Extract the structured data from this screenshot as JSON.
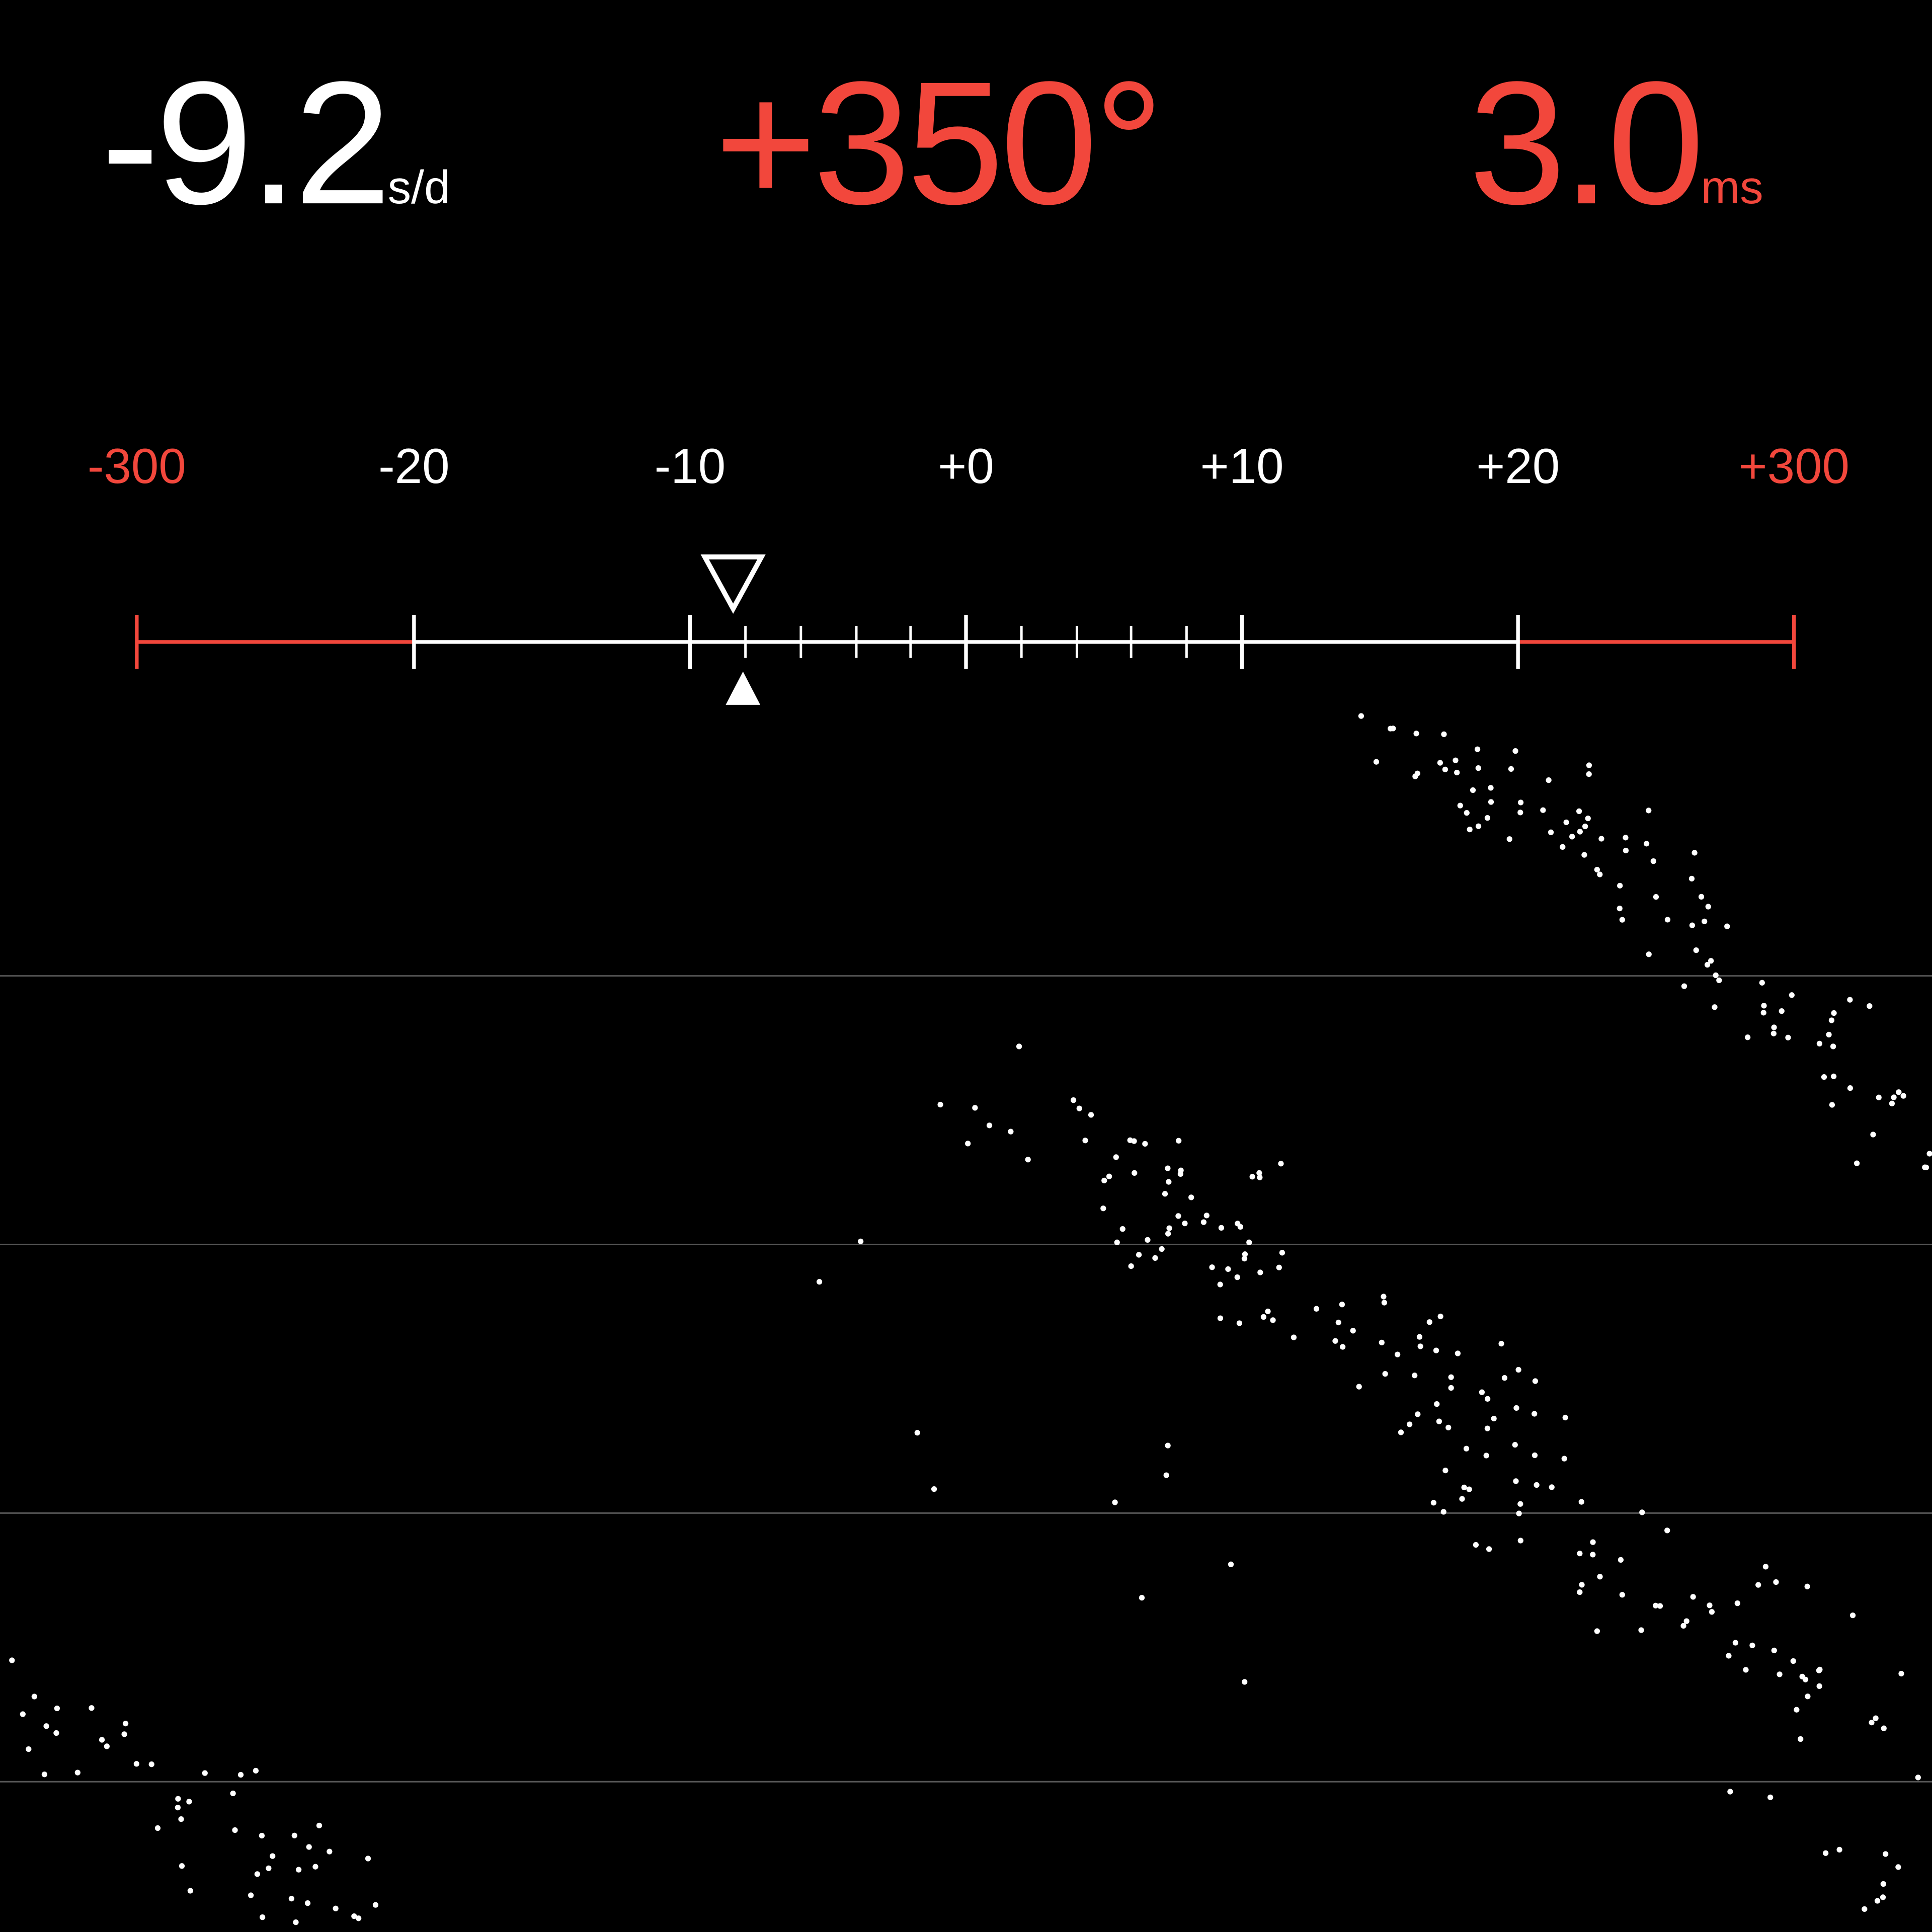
{
  "readouts": {
    "rate": {
      "value": "-9.2",
      "unit": "s/d",
      "color": "#ffffff"
    },
    "amplitude": {
      "value": "+350°",
      "color": "#f2473c"
    },
    "beat_error": {
      "value": "3.0",
      "unit": "ms",
      "color": "#f2473c"
    }
  },
  "scale": {
    "labels": [
      {
        "text": "-300",
        "color": "#f2473c"
      },
      {
        "text": "-20",
        "color": "#ffffff"
      },
      {
        "text": "-10",
        "color": "#ffffff"
      },
      {
        "text": "+0",
        "color": "#ffffff"
      },
      {
        "text": "+10",
        "color": "#ffffff"
      },
      {
        "text": "+20",
        "color": "#ffffff"
      },
      {
        "text": "+300",
        "color": "#f2473c"
      }
    ],
    "current_value": -8,
    "average_value": -8.4,
    "out_of_range_color": "#f2473c",
    "in_range_color": "#ffffff"
  },
  "trace": {
    "dot_color": "#ffffff",
    "gridline_color": "#555555"
  }
}
